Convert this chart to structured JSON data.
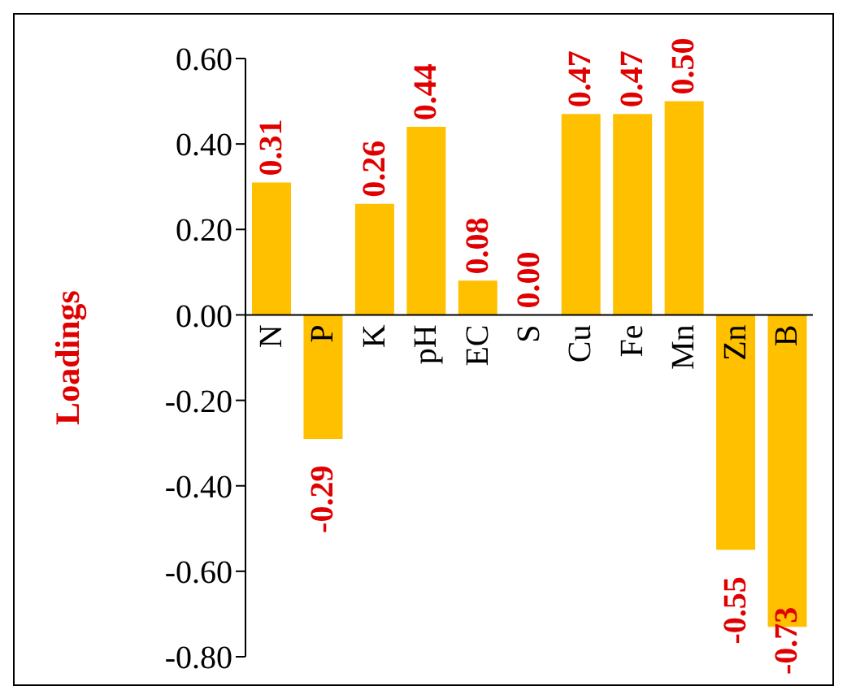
{
  "chart_data": {
    "type": "bar",
    "ylabel": "Loadings",
    "categories": [
      "N",
      "P",
      "K",
      "pH",
      "EC",
      "S",
      "Cu",
      "Fe",
      "Mn",
      "Zn",
      "B"
    ],
    "values": [
      0.31,
      -0.29,
      0.26,
      0.44,
      0.08,
      0.0,
      0.47,
      0.47,
      0.5,
      -0.55,
      -0.73
    ],
    "color": "#ffc000",
    "value_labels": [
      "0.31",
      "-0.29",
      "0.26",
      "0.44",
      "0.08",
      "0.00",
      "0.47",
      "0.47",
      "0.50",
      "-0.55",
      "-0.73"
    ],
    "ylim": [
      -0.8,
      0.6
    ],
    "yticks": [
      {
        "value": -0.8,
        "label": "-0.80"
      },
      {
        "value": -0.6,
        "label": "-0.60"
      },
      {
        "value": -0.4,
        "label": "-0.40"
      },
      {
        "value": -0.2,
        "label": "-0.20"
      },
      {
        "value": 0,
        "label": "0.00"
      },
      {
        "value": 0.2,
        "label": "0.20"
      },
      {
        "value": 0.4,
        "label": "0.40"
      },
      {
        "value": 0.6,
        "label": "0.60"
      }
    ],
    "grid": false,
    "legend": false
  }
}
